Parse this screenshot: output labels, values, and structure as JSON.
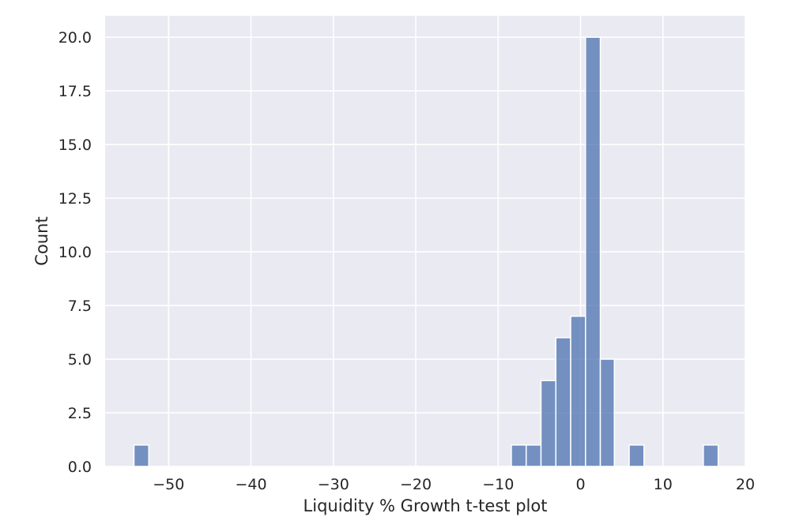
{
  "chart_data": {
    "type": "bar",
    "subtype": "histogram",
    "title": "",
    "xlabel": "Liquidity % Growth t-test plot",
    "ylabel": "Count",
    "xlim": [
      -57.7,
      20
    ],
    "ylim": [
      0,
      21
    ],
    "grid": true,
    "bar_color": "#4c72b0",
    "background_color": "#eaeaf2",
    "grid_color": "#ffffff",
    "x_ticks": [
      -50,
      -40,
      -30,
      -20,
      -10,
      0,
      10,
      20
    ],
    "x_tick_labels": [
      "−50",
      "−40",
      "−30",
      "−20",
      "−10",
      "0",
      "10",
      "20"
    ],
    "y_ticks": [
      0,
      2.5,
      5,
      7.5,
      10,
      12.5,
      15,
      17.5,
      20
    ],
    "y_tick_labels": [
      "0.0",
      "2.5",
      "5.0",
      "7.5",
      "10.0",
      "12.5",
      "15.0",
      "17.5",
      "20.0"
    ],
    "bins": [
      {
        "x0": -54.2,
        "x1": -52.4,
        "count": 1
      },
      {
        "x0": -8.4,
        "x1": -6.6,
        "count": 1
      },
      {
        "x0": -6.6,
        "x1": -4.8,
        "count": 1
      },
      {
        "x0": -4.8,
        "x1": -3.0,
        "count": 4
      },
      {
        "x0": -3.0,
        "x1": -1.2,
        "count": 6
      },
      {
        "x0": -1.2,
        "x1": 0.6,
        "count": 7
      },
      {
        "x0": 0.6,
        "x1": 2.4,
        "count": 20
      },
      {
        "x0": 2.4,
        "x1": 4.1,
        "count": 5
      },
      {
        "x0": 5.9,
        "x1": 7.7,
        "count": 1
      },
      {
        "x0": 14.9,
        "x1": 16.7,
        "count": 1
      }
    ]
  }
}
